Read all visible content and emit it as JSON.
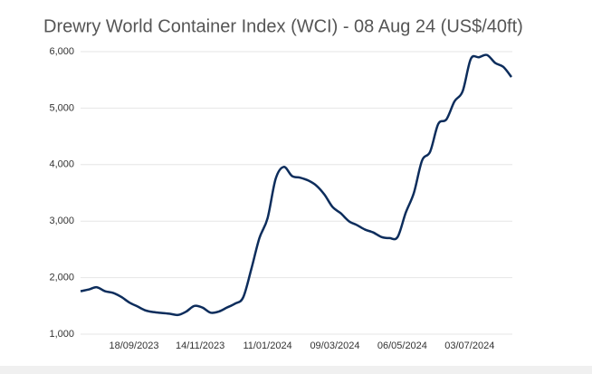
{
  "chart_data": {
    "type": "line",
    "title": "Drewry World Container Index (WCI) - 08 Aug 24 (US$/40ft)",
    "x": [
      "2023-08-03",
      "2023-08-10",
      "2023-08-17",
      "2023-08-24",
      "2023-08-31",
      "2023-09-07",
      "2023-09-14",
      "2023-09-21",
      "2023-09-28",
      "2023-10-05",
      "2023-10-12",
      "2023-10-19",
      "2023-10-26",
      "2023-11-02",
      "2023-11-09",
      "2023-11-16",
      "2023-11-23",
      "2023-11-30",
      "2023-12-07",
      "2023-12-14",
      "2023-12-21",
      "2023-12-28",
      "2024-01-04",
      "2024-01-11",
      "2024-01-18",
      "2024-01-25",
      "2024-02-01",
      "2024-02-08",
      "2024-02-15",
      "2024-02-22",
      "2024-02-29",
      "2024-03-07",
      "2024-03-14",
      "2024-03-21",
      "2024-03-28",
      "2024-04-04",
      "2024-04-11",
      "2024-04-18",
      "2024-04-25",
      "2024-05-02",
      "2024-05-09",
      "2024-05-16",
      "2024-05-23",
      "2024-05-30",
      "2024-06-06",
      "2024-06-13",
      "2024-06-20",
      "2024-06-27",
      "2024-07-04",
      "2024-07-11",
      "2024-07-18",
      "2024-07-25",
      "2024-08-01",
      "2024-08-08"
    ],
    "series": [
      {
        "name": "WCI",
        "color": "#0d2d5c",
        "values": [
          1760,
          1790,
          1830,
          1760,
          1730,
          1660,
          1560,
          1490,
          1420,
          1390,
          1375,
          1360,
          1340,
          1400,
          1500,
          1470,
          1380,
          1400,
          1470,
          1540,
          1650,
          2150,
          2700,
          3050,
          3750,
          3960,
          3800,
          3770,
          3720,
          3630,
          3470,
          3250,
          3140,
          3000,
          2930,
          2850,
          2800,
          2720,
          2700,
          2720,
          3150,
          3500,
          4070,
          4230,
          4720,
          4800,
          5120,
          5300,
          5870,
          5900,
          5940,
          5800,
          5730,
          5550
        ]
      }
    ],
    "xlim": [
      "2023-08-03",
      "2024-08-08"
    ],
    "xticks": [
      {
        "value": "2023-09-18",
        "label": "18/09/2023"
      },
      {
        "value": "2023-11-14",
        "label": "14/11/2023"
      },
      {
        "value": "2024-01-11",
        "label": "11/01/2024"
      },
      {
        "value": "2024-03-09",
        "label": "09/03/2024"
      },
      {
        "value": "2024-05-06",
        "label": "06/05/2024"
      },
      {
        "value": "2024-07-03",
        "label": "03/07/2024"
      }
    ],
    "ylim": [
      1000,
      6000
    ],
    "yticks": [
      {
        "value": 1000,
        "label": "1,000"
      },
      {
        "value": 2000,
        "label": "2,000"
      },
      {
        "value": 3000,
        "label": "3,000"
      },
      {
        "value": 4000,
        "label": "4,000"
      },
      {
        "value": 5000,
        "label": "5,000"
      },
      {
        "value": 6000,
        "label": "6,000"
      }
    ],
    "grid": true
  }
}
